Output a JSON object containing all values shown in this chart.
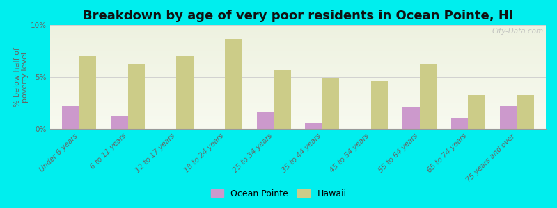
{
  "title": "Breakdown by age of very poor residents in Ocean Pointe, HI",
  "ylabel": "% below half of\npoverty level",
  "categories": [
    "Under 6 years",
    "6 to 11 years",
    "12 to 17 years",
    "18 to 24 years",
    "25 to 34 years",
    "35 to 44 years",
    "45 to 54 years",
    "55 to 64 years",
    "65 to 74 years",
    "75 years and over"
  ],
  "ocean_pointe": [
    2.2,
    1.2,
    0.0,
    0.0,
    1.7,
    0.6,
    0.0,
    2.1,
    1.1,
    2.2
  ],
  "hawaii": [
    7.0,
    6.2,
    7.0,
    8.7,
    5.7,
    4.9,
    4.6,
    6.2,
    3.3,
    3.3
  ],
  "ocean_pointe_color": "#cc99cc",
  "hawaii_color": "#cccc88",
  "background_color": "#00eeee",
  "plot_bg_top": "#eef2e0",
  "plot_bg_bottom": "#f8faf0",
  "ylim": [
    0,
    10
  ],
  "yticks": [
    0,
    5,
    10
  ],
  "ytick_labels": [
    "0%",
    "5%",
    "10%"
  ],
  "bar_width": 0.35,
  "title_fontsize": 13,
  "axis_label_fontsize": 8,
  "tick_fontsize": 7.5,
  "legend_fontsize": 9,
  "watermark": "City-Data.com"
}
